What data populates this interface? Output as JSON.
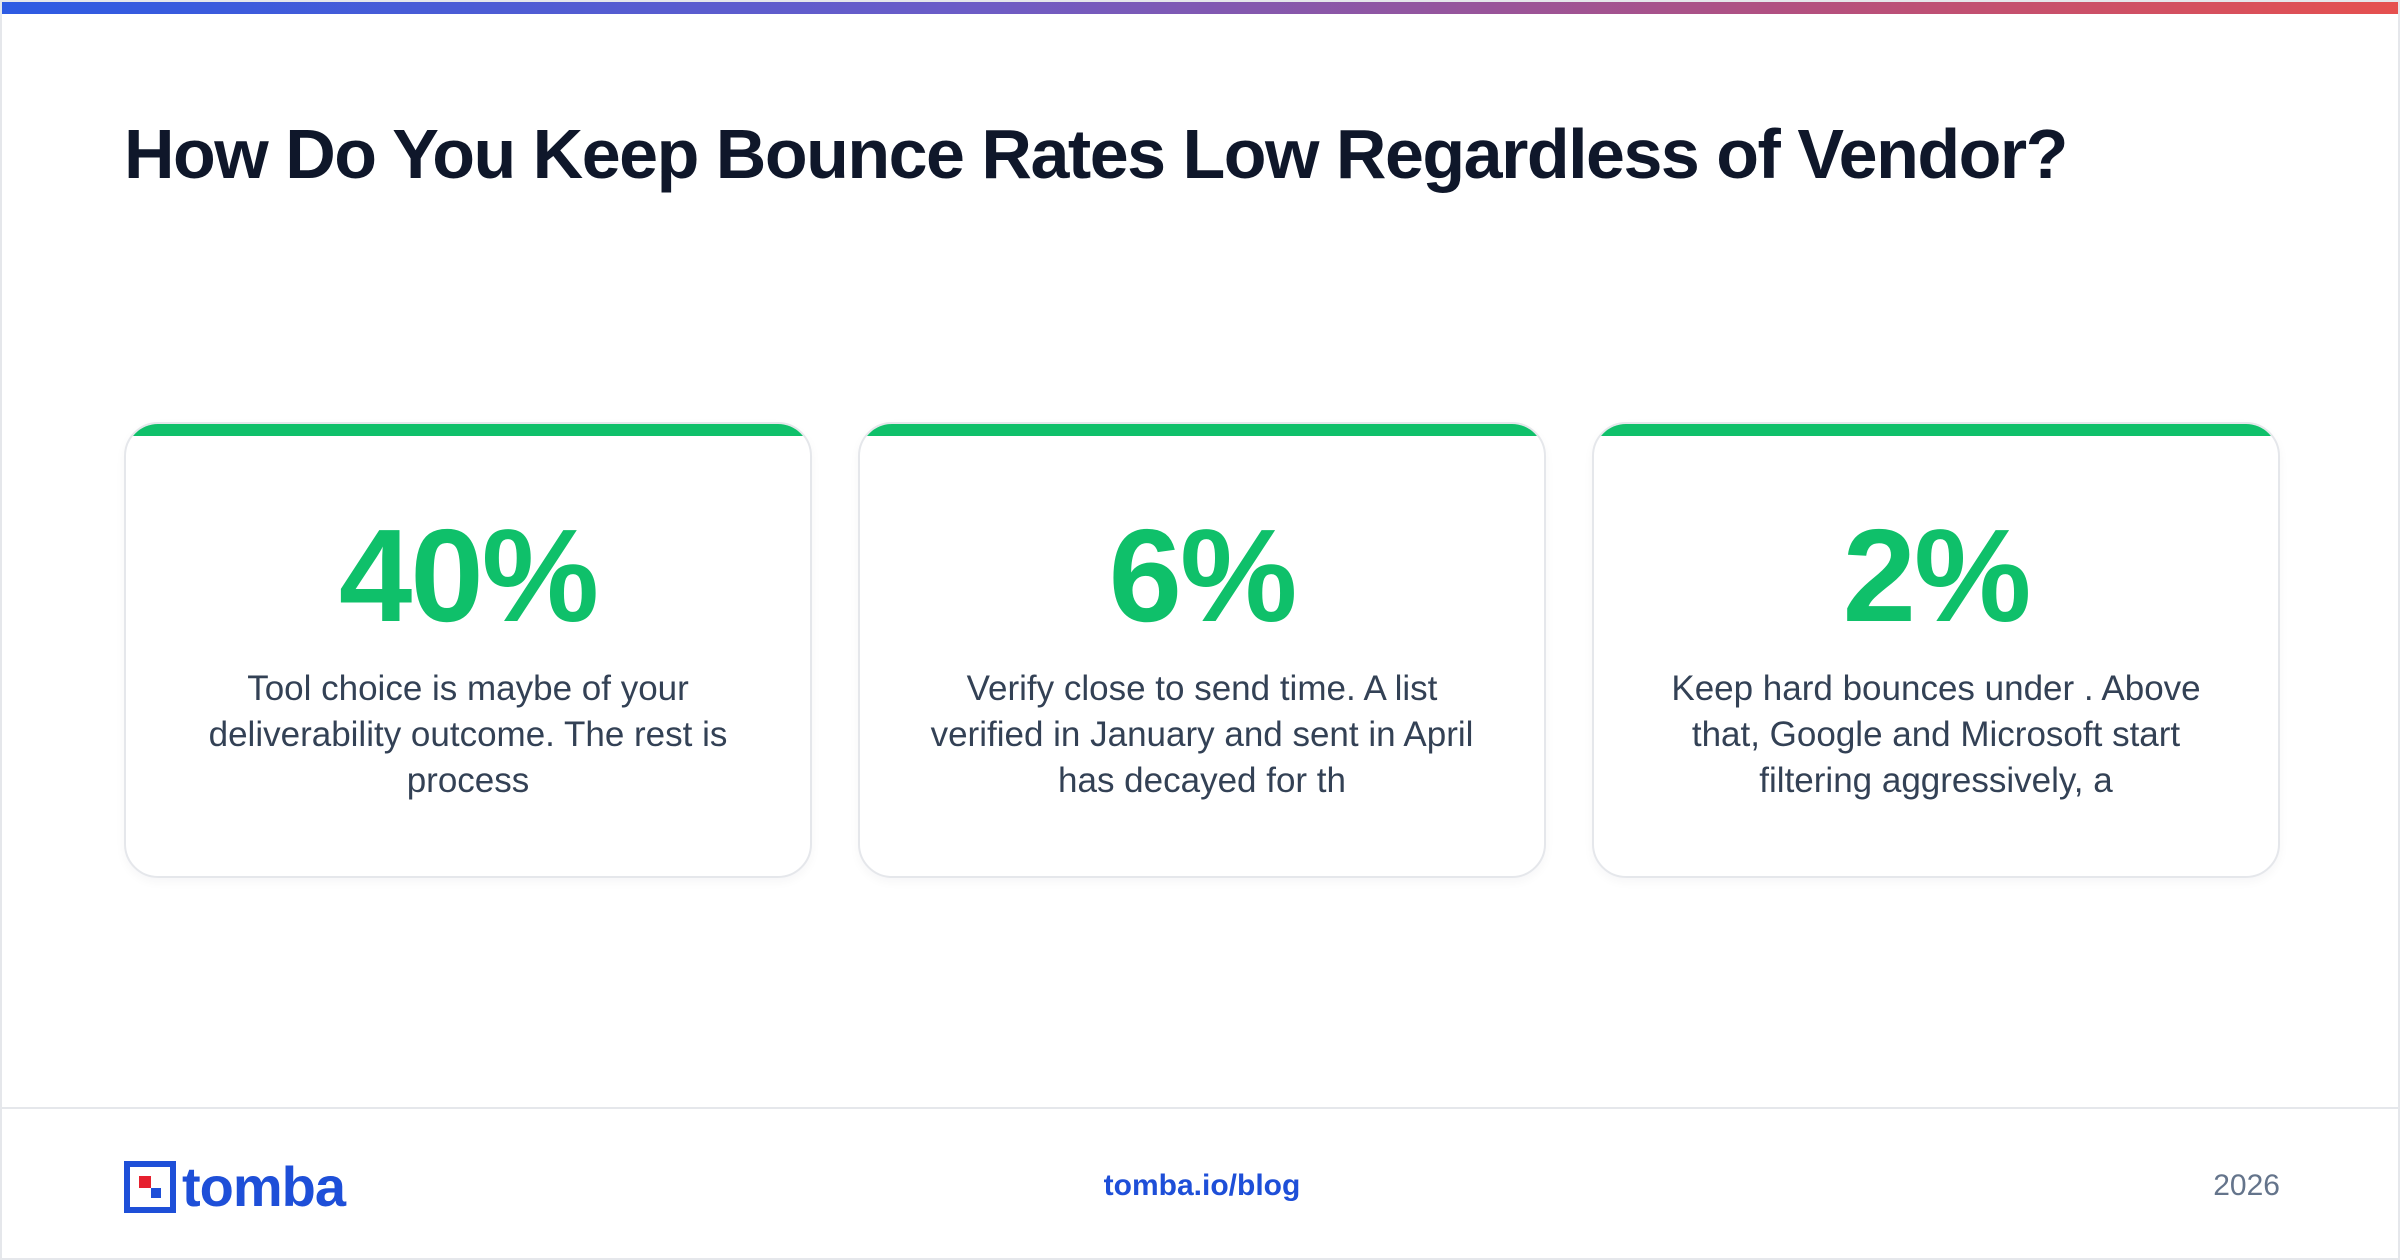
{
  "header": {
    "title": "How Do You Keep Bounce Rates Low Regardless of Vendor?"
  },
  "colors": {
    "accent_green": "#0fc06a",
    "title_text": "#0f172a",
    "body_text": "#334155",
    "brand_blue": "#1e4fd8",
    "brand_red": "#e6202e",
    "muted_text": "#64748b"
  },
  "cards": [
    {
      "value": "40%",
      "text": "Tool choice is maybe of your deliverability outcome. The rest is process"
    },
    {
      "value": "6%",
      "text": "Verify close to send time. A list verified in January and sent in April has decayed for th"
    },
    {
      "value": "2%",
      "text": "Keep hard bounces under . Above that, Google and Microsoft start filtering aggressively, a"
    }
  ],
  "footer": {
    "logo_text": "tomba",
    "link": "tomba.io/blog",
    "year": "2026"
  }
}
